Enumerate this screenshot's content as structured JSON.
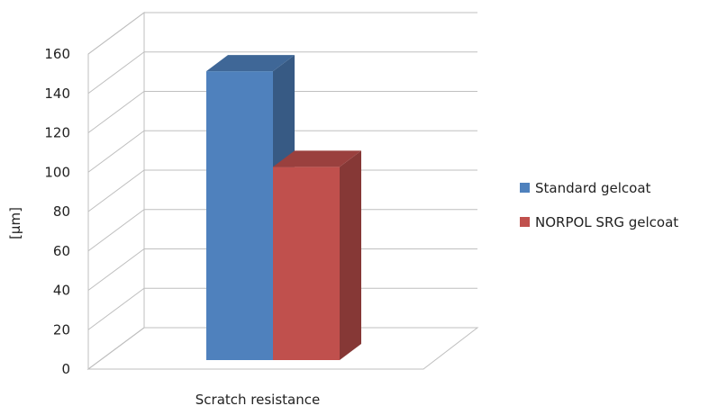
{
  "chart_data": {
    "type": "bar",
    "style": "3d-clustered-column",
    "categories": [
      "Scratch resistance"
    ],
    "series": [
      {
        "name": "Standard gelcoat",
        "values": [
          151
        ],
        "color": "#4f81bd"
      },
      {
        "name": "NORPOL SRG gelcoat",
        "values": [
          101
        ],
        "color": "#c0504d"
      }
    ],
    "ylabel": "[µm]",
    "xlabel": "",
    "title": "",
    "ylim": [
      0,
      160
    ],
    "yticks": [
      "0",
      "20",
      "40",
      "60",
      "80",
      "100",
      "120",
      "140",
      "160"
    ],
    "grid": true,
    "legend_position": "right"
  }
}
